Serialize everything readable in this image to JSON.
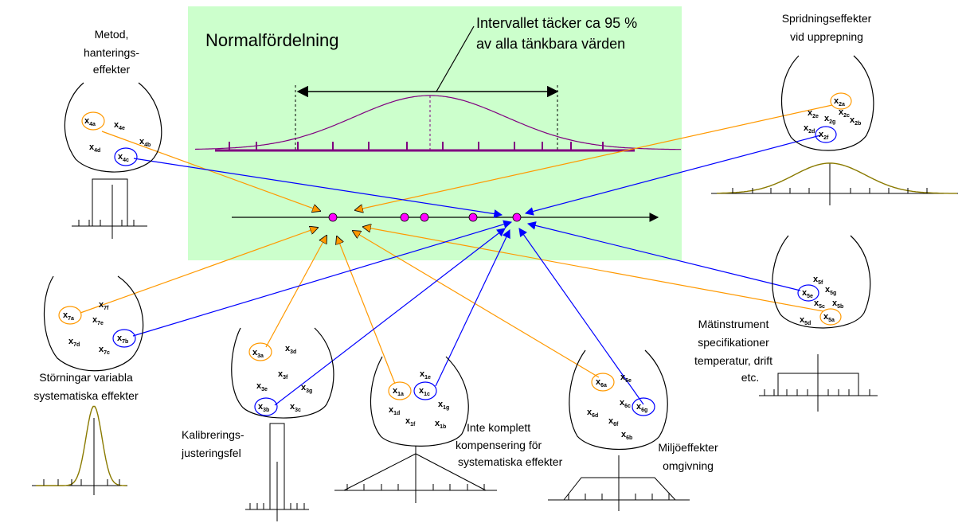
{
  "title": "Normalfördelning",
  "interval_note": [
    "Intervallet täcker ca 95 %",
    "av alla tänkbara värden"
  ],
  "colors": {
    "panel": "#ccffcc",
    "orange": "#ff9900",
    "blue": "#0000ff",
    "purple": "#800080",
    "olive": "#8a7a00",
    "magenta": "#ff00ff"
  },
  "groups": {
    "metod": {
      "label": [
        "Metod,",
        "hanterings-",
        "effekter"
      ],
      "items": [
        {
          "b": "x",
          "s": "4a",
          "mark": "orange"
        },
        {
          "b": "x",
          "s": "4e",
          "mark": ""
        },
        {
          "b": "x",
          "s": "4d",
          "mark": ""
        },
        {
          "b": "x",
          "s": "4b",
          "mark": ""
        },
        {
          "b": "x",
          "s": "4c",
          "mark": "blue"
        }
      ]
    },
    "spridning": {
      "label": [
        "Spridningseffekter",
        "vid upprepning"
      ],
      "items": [
        {
          "b": "x",
          "s": "2a",
          "mark": "orange"
        },
        {
          "b": "x",
          "s": "2e",
          "mark": ""
        },
        {
          "b": "x",
          "s": "2c",
          "mark": ""
        },
        {
          "b": "x",
          "s": "2g",
          "mark": ""
        },
        {
          "b": "x",
          "s": "2b",
          "mark": ""
        },
        {
          "b": "x",
          "s": "2d",
          "mark": ""
        },
        {
          "b": "x",
          "s": "2f",
          "mark": "blue"
        }
      ]
    },
    "storningar": {
      "label": [
        "Störningar variabla",
        "systematiska effekter"
      ],
      "items": [
        {
          "b": "x",
          "s": "7f",
          "mark": ""
        },
        {
          "b": "x",
          "s": "7a",
          "mark": "orange"
        },
        {
          "b": "x",
          "s": "7e",
          "mark": ""
        },
        {
          "b": "x",
          "s": "7d",
          "mark": ""
        },
        {
          "b": "x",
          "s": "7b",
          "mark": "blue"
        },
        {
          "b": "x",
          "s": "7c",
          "mark": ""
        }
      ]
    },
    "kalibrering": {
      "label": [
        "Kalibrerings-",
        "justeringsfel"
      ],
      "items": [
        {
          "b": "x",
          "s": "3a",
          "mark": "orange"
        },
        {
          "b": "x",
          "s": "3d",
          "mark": ""
        },
        {
          "b": "x",
          "s": "3f",
          "mark": ""
        },
        {
          "b": "x",
          "s": "3e",
          "mark": ""
        },
        {
          "b": "x",
          "s": "3g",
          "mark": ""
        },
        {
          "b": "x",
          "s": "3b",
          "mark": "blue"
        },
        {
          "b": "x",
          "s": "3c",
          "mark": ""
        }
      ]
    },
    "kompensering": {
      "label": [
        "Inte komplett",
        "kompensering för",
        "systematiska effekter"
      ],
      "items": [
        {
          "b": "x",
          "s": "1e",
          "mark": ""
        },
        {
          "b": "x",
          "s": "1a",
          "mark": "orange"
        },
        {
          "b": "x",
          "s": "1c",
          "mark": "blue"
        },
        {
          "b": "x",
          "s": "1g",
          "mark": ""
        },
        {
          "b": "x",
          "s": "1d",
          "mark": ""
        },
        {
          "b": "x",
          "s": "1f",
          "mark": ""
        },
        {
          "b": "x",
          "s": "1b",
          "mark": ""
        }
      ]
    },
    "miljo": {
      "label": [
        "Miljöeffekter",
        "omgivning"
      ],
      "items": [
        {
          "b": "x",
          "s": "6e",
          "mark": ""
        },
        {
          "b": "x",
          "s": "6a",
          "mark": "orange"
        },
        {
          "b": "x",
          "s": "6c",
          "mark": ""
        },
        {
          "b": "x",
          "s": "6g",
          "mark": "blue"
        },
        {
          "b": "x",
          "s": "6d",
          "mark": ""
        },
        {
          "b": "x",
          "s": "6f",
          "mark": ""
        },
        {
          "b": "x",
          "s": "6b",
          "mark": ""
        }
      ]
    },
    "matinstrument": {
      "label": [
        "Mätinstrument",
        "specifikationer",
        "temperatur, drift",
        "etc."
      ],
      "items": [
        {
          "b": "x",
          "s": "5f",
          "mark": ""
        },
        {
          "b": "x",
          "s": "5e",
          "mark": "blue"
        },
        {
          "b": "x",
          "s": "5g",
          "mark": ""
        },
        {
          "b": "x",
          "s": "5c",
          "mark": ""
        },
        {
          "b": "x",
          "s": "5b",
          "mark": ""
        },
        {
          "b": "x",
          "s": "5d",
          "mark": ""
        },
        {
          "b": "x",
          "s": "5a",
          "mark": "orange"
        }
      ]
    }
  }
}
